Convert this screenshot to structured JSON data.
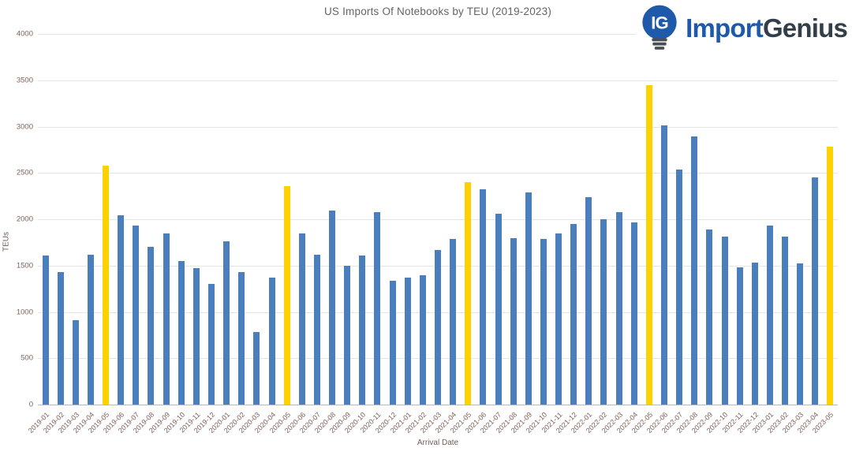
{
  "header": {
    "logo": {
      "monogram": "IG",
      "brand_part1": "Import",
      "brand_part2": "Genius"
    }
  },
  "chart_data": {
    "type": "bar",
    "title": "US Imports Of Notebooks by TEU (2019-2023)",
    "xlabel": "Arrival Date",
    "ylabel": "TEUs",
    "ylim": [
      0,
      4000
    ],
    "ytick_step": 500,
    "grid": true,
    "legend": "none",
    "categories": [
      "2019-01",
      "2019-02",
      "2019-03",
      "2019-04",
      "2019-05",
      "2019-06",
      "2019-07",
      "2019-08",
      "2019-09",
      "2019-10",
      "2019-11",
      "2019-12",
      "2020-01",
      "2020-02",
      "2020-03",
      "2020-04",
      "2020-05",
      "2020-06",
      "2020-07",
      "2020-08",
      "2020-09",
      "2020-10",
      "2020-11",
      "2020-12",
      "2021-01",
      "2021-02",
      "2021-03",
      "2021-04",
      "2021-05",
      "2021-06",
      "2021-07",
      "2021-08",
      "2021-09",
      "2021-10",
      "2021-11",
      "2021-12",
      "2022-01",
      "2022-02",
      "2022-03",
      "2022-04",
      "2022-05",
      "2022-06",
      "2022-07",
      "2022-08",
      "2022-09",
      "2022-10",
      "2022-11",
      "2022-12",
      "2023-01",
      "2023-02",
      "2023-03",
      "2023-04",
      "2023-05"
    ],
    "values": [
      1610,
      1430,
      910,
      1620,
      2580,
      2040,
      1930,
      1700,
      1850,
      1550,
      1470,
      1300,
      1760,
      1430,
      780,
      1370,
      2360,
      1850,
      1620,
      2090,
      1500,
      1610,
      2080,
      1340,
      1370,
      1400,
      1670,
      1790,
      2400,
      2320,
      2060,
      1800,
      2290,
      1790,
      1850,
      1950,
      2240,
      2000,
      2080,
      1970,
      3450,
      3010,
      2540,
      2890,
      1890,
      1810,
      1480,
      1530,
      1930,
      1810,
      1520,
      2450,
      2780
    ],
    "highlighted_categories": [
      "2019-05",
      "2020-05",
      "2021-05",
      "2022-05",
      "2023-05"
    ],
    "colors": {
      "bar": "#4a7ebd",
      "highlight": "#ffd100",
      "gridline": "#e6e6e6",
      "axis_line": "#b9b9b9",
      "tick_label": "#7d6157",
      "title": "#646464",
      "logo_blue": "#1e5aa9",
      "logo_dark": "#323e48"
    }
  }
}
